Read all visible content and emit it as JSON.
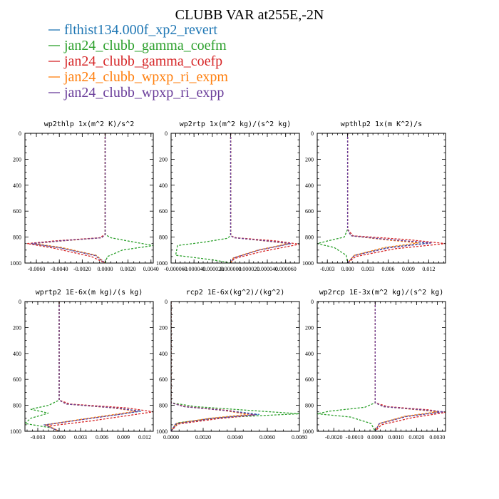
{
  "title": "CLUBB VAR at255E,-2N",
  "legend": [
    {
      "label": "flthist134.000f_xp2_revert",
      "color": "#1f77b4"
    },
    {
      "label": "jan24_clubb_gamma_coefm",
      "color": "#2ca02c"
    },
    {
      "label": "jan24_clubb_gamma_coefp",
      "color": "#d62728"
    },
    {
      "label": "jan24_clubb_wpxp_ri_expm",
      "color": "#ff7f0e"
    },
    {
      "label": "jan24_clubb_wpxp_ri_expp",
      "color": "#6a3d9a"
    }
  ],
  "chart_data": [
    {
      "type": "line",
      "title": "wp2thlp  1x(m^2 K)/s^2",
      "xlim": [
        -0.007,
        0.0042
      ],
      "ylim": [
        1000,
        0
      ],
      "xticks": [
        -0.006,
        -0.004,
        -0.002,
        0.0,
        0.002,
        0.004
      ],
      "xtick_labels": [
        "-0.0060",
        "-0.0040",
        "-0.0020",
        "0.0000",
        "0.0020",
        "0.0040"
      ],
      "yticks": [
        0,
        200,
        400,
        600,
        800,
        1000
      ],
      "ytick_labels": [
        "0",
        "200",
        "400",
        "600",
        "800",
        "1000"
      ],
      "series": [
        {
          "color": "#1f77b4",
          "x": [
            0.0,
            0.0,
            0.0,
            -0.0003,
            -0.004,
            -0.0065,
            -0.004,
            -0.0008,
            0.0
          ],
          "y": [
            0,
            400,
            780,
            805,
            830,
            850,
            880,
            940,
            1000
          ]
        },
        {
          "color": "#2ca02c",
          "x": [
            0.0,
            0.0,
            0.0,
            0.0005,
            0.002,
            0.0042,
            0.0015,
            0.0002,
            0.0
          ],
          "y": [
            0,
            400,
            780,
            805,
            830,
            865,
            900,
            950,
            1000
          ]
        },
        {
          "color": "#d62728",
          "x": [
            0.0,
            0.0,
            0.0,
            -0.0005,
            -0.0045,
            -0.0068,
            -0.0045,
            -0.0012,
            0.0
          ],
          "y": [
            0,
            400,
            780,
            805,
            830,
            850,
            885,
            950,
            1000
          ]
        },
        {
          "color": "#ff7f0e",
          "x": [
            0.0,
            0.0,
            0.0,
            -0.0003,
            -0.0038,
            -0.0062,
            -0.0038,
            -0.0008,
            0.0
          ],
          "y": [
            0,
            400,
            780,
            805,
            830,
            850,
            880,
            940,
            1000
          ]
        },
        {
          "color": "#6a3d9a",
          "x": [
            0.0,
            0.0,
            0.0,
            -0.0003,
            -0.004,
            -0.0064,
            -0.004,
            -0.0009,
            0.0
          ],
          "y": [
            0,
            400,
            780,
            805,
            830,
            850,
            882,
            942,
            1000
          ]
        }
      ]
    },
    {
      "type": "line",
      "title": "wp2rtp  1x(m^2 kg)/(s^2 kg)",
      "xlim": [
        -6.5e-05,
        7.5e-05
      ],
      "ylim": [
        1000,
        0
      ],
      "xticks": [
        -6e-05,
        -4e-05,
        -2e-05,
        0.0,
        2e-05,
        4e-05,
        6e-05
      ],
      "xtick_labels": [
        "-0.000060",
        "-0.000040",
        "-0.000020",
        "0.000000",
        "0.000020",
        "0.000040",
        "0.000060"
      ],
      "yticks": [
        0,
        200,
        400,
        600,
        800,
        1000
      ],
      "ytick_labels": [
        "0",
        "200",
        "400",
        "600",
        "800",
        "1000"
      ],
      "series": [
        {
          "color": "#1f77b4",
          "x": [
            0.0,
            0.0,
            0.0,
            4e-06,
            4e-05,
            6.5e-05,
            3e-05,
            3e-06,
            0.0
          ],
          "y": [
            0,
            400,
            790,
            805,
            830,
            850,
            900,
            960,
            1000
          ]
        },
        {
          "color": "#2ca02c",
          "x": [
            0.0,
            0.0,
            0.0,
            -4e-06,
            -3e-05,
            -5.8e-05,
            -6e-05,
            -2e-05,
            0.0
          ],
          "y": [
            0,
            400,
            790,
            810,
            840,
            865,
            940,
            975,
            1000
          ]
        },
        {
          "color": "#d62728",
          "x": [
            0.0,
            0.0,
            0.0,
            6e-06,
            5e-05,
            7.5e-05,
            3.5e-05,
            4e-06,
            0.0
          ],
          "y": [
            0,
            400,
            790,
            805,
            830,
            855,
            910,
            965,
            1000
          ]
        },
        {
          "color": "#ff7f0e",
          "x": [
            0.0,
            0.0,
            0.0,
            4e-06,
            3.8e-05,
            6.3e-05,
            3e-05,
            3e-06,
            0.0
          ],
          "y": [
            0,
            400,
            790,
            805,
            830,
            850,
            900,
            960,
            1000
          ]
        },
        {
          "color": "#6a3d9a",
          "x": [
            0.0,
            0.0,
            0.0,
            4e-06,
            4e-05,
            6.6e-05,
            3e-05,
            3e-06,
            0.0
          ],
          "y": [
            0,
            400,
            790,
            805,
            830,
            850,
            902,
            962,
            1000
          ]
        }
      ]
    },
    {
      "type": "line",
      "title": "wpthlp2  1x(m K^2)/s",
      "xlim": [
        -0.0045,
        0.0145
      ],
      "ylim": [
        1000,
        0
      ],
      "xticks": [
        -0.003,
        0.0,
        0.003,
        0.006,
        0.009,
        0.012
      ],
      "xtick_labels": [
        "-0.003",
        "0.000",
        "0.003",
        "0.006",
        "0.009",
        "0.012"
      ],
      "yticks": [
        0,
        200,
        400,
        600,
        800,
        1000
      ],
      "ytick_labels": [
        "0",
        "200",
        "400",
        "600",
        "800",
        "1000"
      ],
      "series": [
        {
          "color": "#1f77b4",
          "x": [
            0.0,
            0.0,
            0.0,
            0.0005,
            0.006,
            0.012,
            0.006,
            0.001,
            0.0
          ],
          "y": [
            0,
            400,
            740,
            790,
            820,
            845,
            880,
            940,
            1000
          ]
        },
        {
          "color": "#2ca02c",
          "x": [
            0.0,
            0.0,
            0.0,
            -0.0005,
            -0.003,
            -0.0045,
            -0.002,
            -0.0002,
            0.0
          ],
          "y": [
            0,
            400,
            740,
            800,
            830,
            850,
            880,
            940,
            1000
          ]
        },
        {
          "color": "#d62728",
          "x": [
            0.0,
            0.0,
            0.0,
            0.0008,
            0.009,
            0.0145,
            0.007,
            0.0012,
            0.0
          ],
          "y": [
            0,
            400,
            740,
            790,
            820,
            850,
            890,
            950,
            1000
          ]
        },
        {
          "color": "#ff7f0e",
          "x": [
            0.0,
            0.0,
            0.0,
            0.0005,
            0.0055,
            0.0105,
            0.0055,
            0.001,
            0.0
          ],
          "y": [
            0,
            400,
            740,
            790,
            820,
            845,
            880,
            940,
            1000
          ]
        },
        {
          "color": "#6a3d9a",
          "x": [
            0.0,
            0.0,
            0.0,
            0.0005,
            0.0062,
            0.0125,
            0.0062,
            0.001,
            0.0
          ],
          "y": [
            0,
            400,
            740,
            790,
            820,
            845,
            882,
            942,
            1000
          ]
        }
      ]
    },
    {
      "type": "line",
      "title": "wprtp2  1E-6x(m kg)/(s kg)",
      "xlim": [
        -0.0048,
        0.0132
      ],
      "ylim": [
        1000,
        0
      ],
      "xticks": [
        -0.003,
        0.0,
        0.003,
        0.006,
        0.009,
        0.012
      ],
      "xtick_labels": [
        "-0.003",
        "0.000",
        "0.003",
        "0.006",
        "0.009",
        "0.012"
      ],
      "yticks": [
        0,
        200,
        400,
        600,
        800,
        1000
      ],
      "ytick_labels": [
        "0",
        "200",
        "400",
        "600",
        "800",
        "1000"
      ],
      "series": [
        {
          "color": "#1f77b4",
          "x": [
            0.0,
            0.0,
            0.0,
            0.001,
            0.008,
            0.0115,
            0.0085,
            0.003,
            -0.002,
            0.0
          ],
          "y": [
            0,
            400,
            760,
            790,
            820,
            845,
            870,
            910,
            950,
            1000
          ]
        },
        {
          "color": "#2ca02c",
          "x": [
            0.0,
            0.0,
            0.0,
            -0.0015,
            -0.004,
            -0.0015,
            -0.004,
            -0.0048,
            -0.001,
            0.0
          ],
          "y": [
            0,
            400,
            760,
            800,
            830,
            860,
            900,
            940,
            975,
            1000
          ]
        },
        {
          "color": "#d62728",
          "x": [
            0.0,
            0.0,
            0.0,
            0.0015,
            0.0095,
            0.0132,
            0.0095,
            0.0045,
            -0.0015,
            0.0
          ],
          "y": [
            0,
            400,
            760,
            790,
            820,
            850,
            880,
            920,
            960,
            1000
          ]
        },
        {
          "color": "#ff7f0e",
          "x": [
            0.0,
            0.0,
            0.0,
            0.001,
            0.0075,
            0.0108,
            0.0078,
            0.0028,
            -0.0018,
            0.0
          ],
          "y": [
            0,
            400,
            760,
            790,
            820,
            845,
            870,
            910,
            950,
            1000
          ]
        },
        {
          "color": "#6a3d9a",
          "x": [
            0.0,
            0.0,
            0.0,
            0.001,
            0.0078,
            0.0112,
            0.0082,
            0.003,
            -0.002,
            0.0
          ],
          "y": [
            0,
            400,
            760,
            790,
            820,
            845,
            872,
            912,
            952,
            1000
          ]
        }
      ]
    },
    {
      "type": "line",
      "title": "rcp2  1E-6x(kg^2)/(kg^2)",
      "xlim": [
        0.0,
        0.008
      ],
      "ylim": [
        1000,
        0
      ],
      "xticks": [
        0.0,
        0.002,
        0.004,
        0.006,
        0.008
      ],
      "xtick_labels": [
        "0.0000",
        "0.0020",
        "0.0040",
        "0.0060",
        "0.0080"
      ],
      "yticks": [
        0,
        200,
        400,
        600,
        800,
        1000
      ],
      "ytick_labels": [
        "0",
        "200",
        "400",
        "600",
        "800",
        "1000"
      ],
      "series": [
        {
          "color": "#1f77b4",
          "x": [
            0.0,
            0.0,
            0.0008,
            0.0035,
            0.0055,
            0.0025,
            0.0003,
            0.0
          ],
          "y": [
            0,
            780,
            810,
            840,
            870,
            900,
            940,
            1000
          ]
        },
        {
          "color": "#2ca02c",
          "x": [
            0.0,
            0.0,
            0.0015,
            0.005,
            0.008,
            0.003,
            0.0004,
            0.0
          ],
          "y": [
            0,
            780,
            810,
            840,
            865,
            895,
            935,
            1000
          ]
        },
        {
          "color": "#d62728",
          "x": [
            0.0,
            0.0,
            0.0009,
            0.0036,
            0.0052,
            0.0028,
            0.0004,
            0.0
          ],
          "y": [
            0,
            780,
            810,
            840,
            875,
            905,
            945,
            1000
          ]
        },
        {
          "color": "#ff7f0e",
          "x": [
            0.0,
            0.0,
            0.0008,
            0.0033,
            0.0048,
            0.0024,
            0.0003,
            0.0
          ],
          "y": [
            0,
            780,
            810,
            840,
            870,
            900,
            940,
            1000
          ]
        },
        {
          "color": "#6a3d9a",
          "x": [
            0.0,
            0.0,
            0.0008,
            0.0034,
            0.0053,
            0.0025,
            0.0003,
            0.0
          ],
          "y": [
            0,
            780,
            810,
            840,
            872,
            902,
            942,
            1000
          ]
        }
      ]
    },
    {
      "type": "line",
      "title": "wp2rcp  1E-3x(m^2 kg)/(s^2 kg)",
      "xlim": [
        -0.0028,
        0.0034
      ],
      "ylim": [
        1000,
        0
      ],
      "xticks": [
        -0.002,
        -0.001,
        0.0,
        0.001,
        0.002,
        0.003
      ],
      "xtick_labels": [
        "-0.0020",
        "-0.0010",
        "0.0000",
        "0.0010",
        "0.0020",
        "0.0030"
      ],
      "yticks": [
        0,
        200,
        400,
        600,
        800,
        1000
      ],
      "ytick_labels": [
        "0",
        "200",
        "400",
        "600",
        "800",
        "1000"
      ],
      "series": [
        {
          "color": "#1f77b4",
          "x": [
            0.0,
            0.0,
            0.0,
            0.0004,
            0.0022,
            0.0032,
            0.0015,
            0.0002,
            0.0
          ],
          "y": [
            0,
            400,
            780,
            810,
            835,
            850,
            885,
            940,
            1000
          ]
        },
        {
          "color": "#2ca02c",
          "x": [
            0.0,
            0.0,
            0.0,
            -0.0005,
            -0.0022,
            -0.0028,
            -0.0012,
            -0.0002,
            0.0
          ],
          "y": [
            0,
            400,
            780,
            815,
            845,
            865,
            890,
            940,
            1000
          ]
        },
        {
          "color": "#d62728",
          "x": [
            0.0,
            0.0,
            0.0,
            0.0006,
            0.0026,
            0.0034,
            0.0018,
            0.0003,
            0.0
          ],
          "y": [
            0,
            400,
            780,
            810,
            835,
            855,
            895,
            950,
            1000
          ]
        },
        {
          "color": "#ff7f0e",
          "x": [
            0.0,
            0.0,
            0.0,
            0.0004,
            0.0021,
            0.003,
            0.0014,
            0.0002,
            0.0
          ],
          "y": [
            0,
            400,
            780,
            810,
            835,
            850,
            885,
            940,
            1000
          ]
        },
        {
          "color": "#6a3d9a",
          "x": [
            0.0,
            0.0,
            0.0,
            0.0004,
            0.0023,
            0.0033,
            0.0015,
            0.0002,
            0.0
          ],
          "y": [
            0,
            400,
            780,
            810,
            835,
            850,
            887,
            942,
            1000
          ]
        }
      ]
    }
  ]
}
